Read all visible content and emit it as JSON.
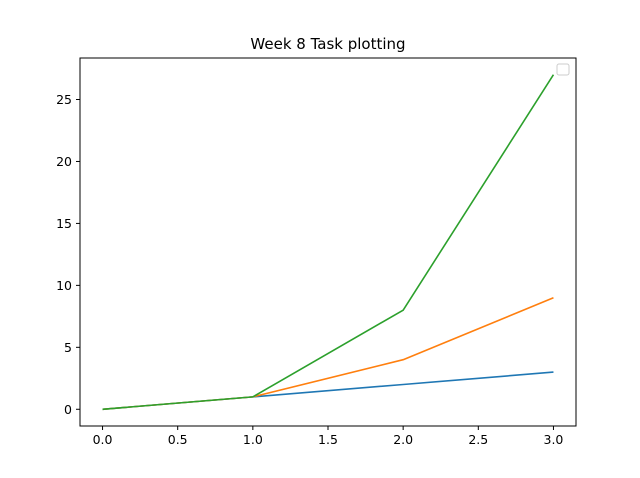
{
  "chart_data": {
    "type": "line",
    "title": "Week 8 Task plotting",
    "xlabel": "",
    "ylabel": "",
    "x": [
      0,
      1,
      2,
      3
    ],
    "xlim": [
      -0.15,
      3.15
    ],
    "ylim": [
      -1.35,
      28.35
    ],
    "xticks": [
      0.0,
      0.5,
      1.0,
      1.5,
      2.0,
      2.5,
      3.0
    ],
    "xtick_labels": [
      "0.0",
      "0.5",
      "1.0",
      "1.5",
      "2.0",
      "2.5",
      "3.0"
    ],
    "yticks": [
      0,
      5,
      10,
      15,
      20,
      25
    ],
    "ytick_labels": [
      "0",
      "5",
      "10",
      "15",
      "20",
      "25"
    ],
    "grid": false,
    "legend": {
      "position": "top-right",
      "entries": []
    },
    "series": [
      {
        "values": [
          0,
          1,
          2,
          3
        ],
        "color": "#1f77b4"
      },
      {
        "values": [
          0,
          1,
          4,
          9
        ],
        "color": "#ff7f0e"
      },
      {
        "values": [
          0,
          1,
          8,
          27
        ],
        "color": "#2ca02c"
      }
    ]
  }
}
